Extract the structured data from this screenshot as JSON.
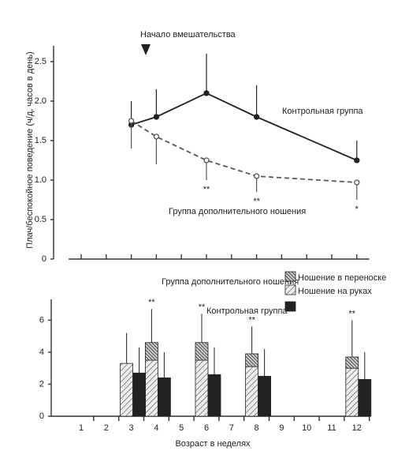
{
  "chart_data": [
    {
      "type": "line",
      "annotation": "Начало вмешательства",
      "ylabel": "Плач/беспокойное поведение (ч/д, часов в день)",
      "x": [
        3,
        4,
        6,
        8,
        12
      ],
      "xlim": [
        0.5,
        12.5
      ],
      "xticks": [
        1,
        2,
        3,
        4,
        5,
        6,
        7,
        8,
        9,
        10,
        11,
        12
      ],
      "ylim": [
        0,
        2.7
      ],
      "yticks": [
        0,
        0.5,
        {
          "value": 1,
          "label": "1.0"
        },
        1.5,
        {
          "value": 2,
          "label": "2.0"
        },
        2.5
      ],
      "series": [
        {
          "name": "Контрольная группа",
          "color": "#222222",
          "line_style": "solid",
          "marker": "filled",
          "error_direction": "up",
          "values": [
            1.7,
            1.8,
            2.1,
            1.8,
            1.25
          ],
          "errors": [
            0.3,
            0.35,
            0.5,
            0.4,
            0.25
          ]
        },
        {
          "name": "Группа дополнительного ношения",
          "color": "#555555",
          "line_style": "dashed",
          "marker": "open",
          "error_direction": "down",
          "values": [
            1.75,
            1.55,
            1.25,
            1.05,
            0.97
          ],
          "errors": [
            0.35,
            0.35,
            0.25,
            0.2,
            0.22
          ],
          "significance": [
            null,
            null,
            "**",
            "**",
            "*"
          ]
        }
      ]
    },
    {
      "type": "bar",
      "stacked": true,
      "xlabel": "Возраст в неделях",
      "legend_title": "Группа дополнительного ношения",
      "categories": [
        "1",
        "2",
        "3",
        "4",
        "5",
        "6",
        "7",
        "8",
        "9",
        "10",
        "11",
        "12"
      ],
      "ylim": [
        0,
        7.3
      ],
      "yticks": [
        0,
        2,
        4,
        6
      ],
      "series": [
        {
          "name": "Ношение на руках",
          "group": "supplemented",
          "pattern": "light-hatch",
          "values": [
            null,
            null,
            3.3,
            3.5,
            null,
            3.5,
            null,
            3.1,
            null,
            null,
            null,
            3.0
          ]
        },
        {
          "name": "Ношение в переноске",
          "group": "supplemented",
          "pattern": "dense-hatch",
          "values": [
            null,
            null,
            0,
            1.1,
            null,
            1.1,
            null,
            0.8,
            null,
            null,
            null,
            0.7
          ],
          "errors": [
            null,
            null,
            1.9,
            2.1,
            null,
            1.8,
            null,
            1.7,
            null,
            null,
            null,
            2.3
          ],
          "significance": [
            null,
            null,
            null,
            "**",
            null,
            "**",
            null,
            "**",
            null,
            null,
            null,
            "**"
          ]
        },
        {
          "name": "Контрольная группа",
          "group": "control",
          "color": "#222222",
          "values": [
            null,
            null,
            2.7,
            2.4,
            null,
            2.6,
            null,
            2.5,
            null,
            null,
            null,
            2.3
          ],
          "errors": [
            null,
            null,
            1.6,
            1.6,
            null,
            1.7,
            null,
            1.7,
            null,
            null,
            null,
            1.7
          ]
        }
      ]
    }
  ]
}
